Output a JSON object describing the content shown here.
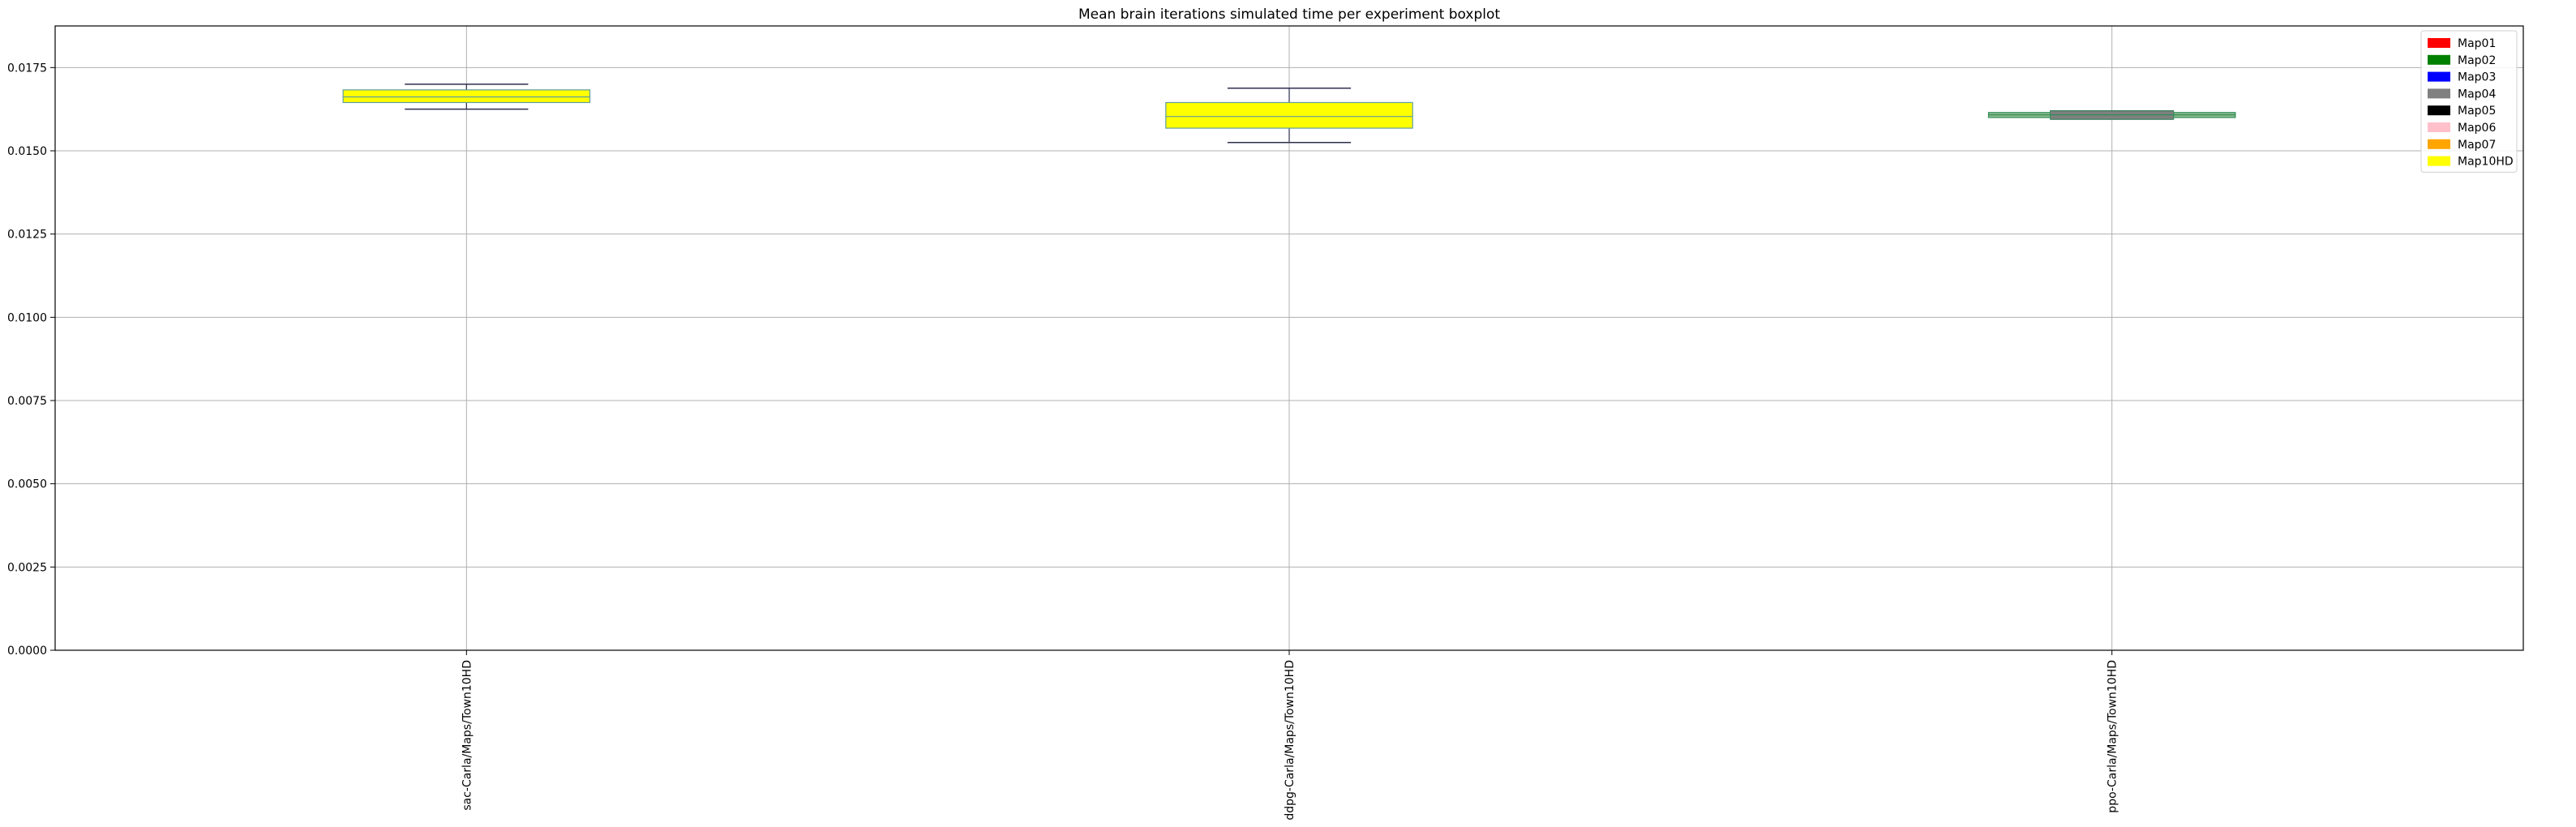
{
  "chart_data": {
    "type": "box",
    "title": "Mean brain iterations simulated time per experiment boxplot",
    "xlabel": "",
    "ylabel": "",
    "ylim": [
      0,
      0.01875
    ],
    "yticks": [
      "0.0000",
      "0.0025",
      "0.0050",
      "0.0075",
      "0.0100",
      "0.0125",
      "0.0150",
      "0.0175"
    ],
    "ytick_values": [
      0,
      0.0025,
      0.005,
      0.0075,
      0.01,
      0.0125,
      0.015,
      0.0175
    ],
    "grid": true,
    "legend_position": "top-right",
    "categories": [
      "sac-Carla/Maps/Town10HD",
      "ddpg-Carla/Maps/Town10HD",
      "ppo-Carla/Maps/Town10HD"
    ],
    "boxes": [
      {
        "category": "sac-Carla/Maps/Town10HD",
        "whisker_low": 0.01625,
        "q1": 0.01645,
        "median": 0.01662,
        "q3": 0.01683,
        "whisker_high": 0.017,
        "fill": "#ffff00",
        "edge": "#5f9ea0"
      },
      {
        "category": "ddpg-Carla/Maps/Town10HD",
        "whisker_low": 0.01525,
        "q1": 0.01568,
        "median": 0.01603,
        "q3": 0.01645,
        "whisker_high": 0.01688,
        "fill": "#ffff00",
        "edge": "#5f9ea0"
      },
      {
        "category": "ppo-Carla/Maps/Town10HD",
        "whisker_low": 0.01595,
        "q1": 0.016,
        "median": 0.01608,
        "q3": 0.01615,
        "whisker_high": 0.0162,
        "fill": "#8fbc8f",
        "edge": "#2e8b57",
        "inner": {
          "q1": 0.01595,
          "q3": 0.0162,
          "fill": "#808080",
          "edge": "#2e8b57"
        },
        "green_line": true
      }
    ],
    "legend": [
      {
        "label": "Map01",
        "color": "#ff0000"
      },
      {
        "label": "Map02",
        "color": "#008000"
      },
      {
        "label": "Map03",
        "color": "#0000ff"
      },
      {
        "label": "Map04",
        "color": "#808080"
      },
      {
        "label": "Map05",
        "color": "#000000"
      },
      {
        "label": "Map06",
        "color": "#ffc0cb"
      },
      {
        "label": "Map07",
        "color": "#ffa500"
      },
      {
        "label": "Map10HD",
        "color": "#ffff00"
      }
    ],
    "colors": {
      "grid": "#b0b0b0",
      "axis": "#000000",
      "whisker": "#2f2f4f"
    }
  }
}
